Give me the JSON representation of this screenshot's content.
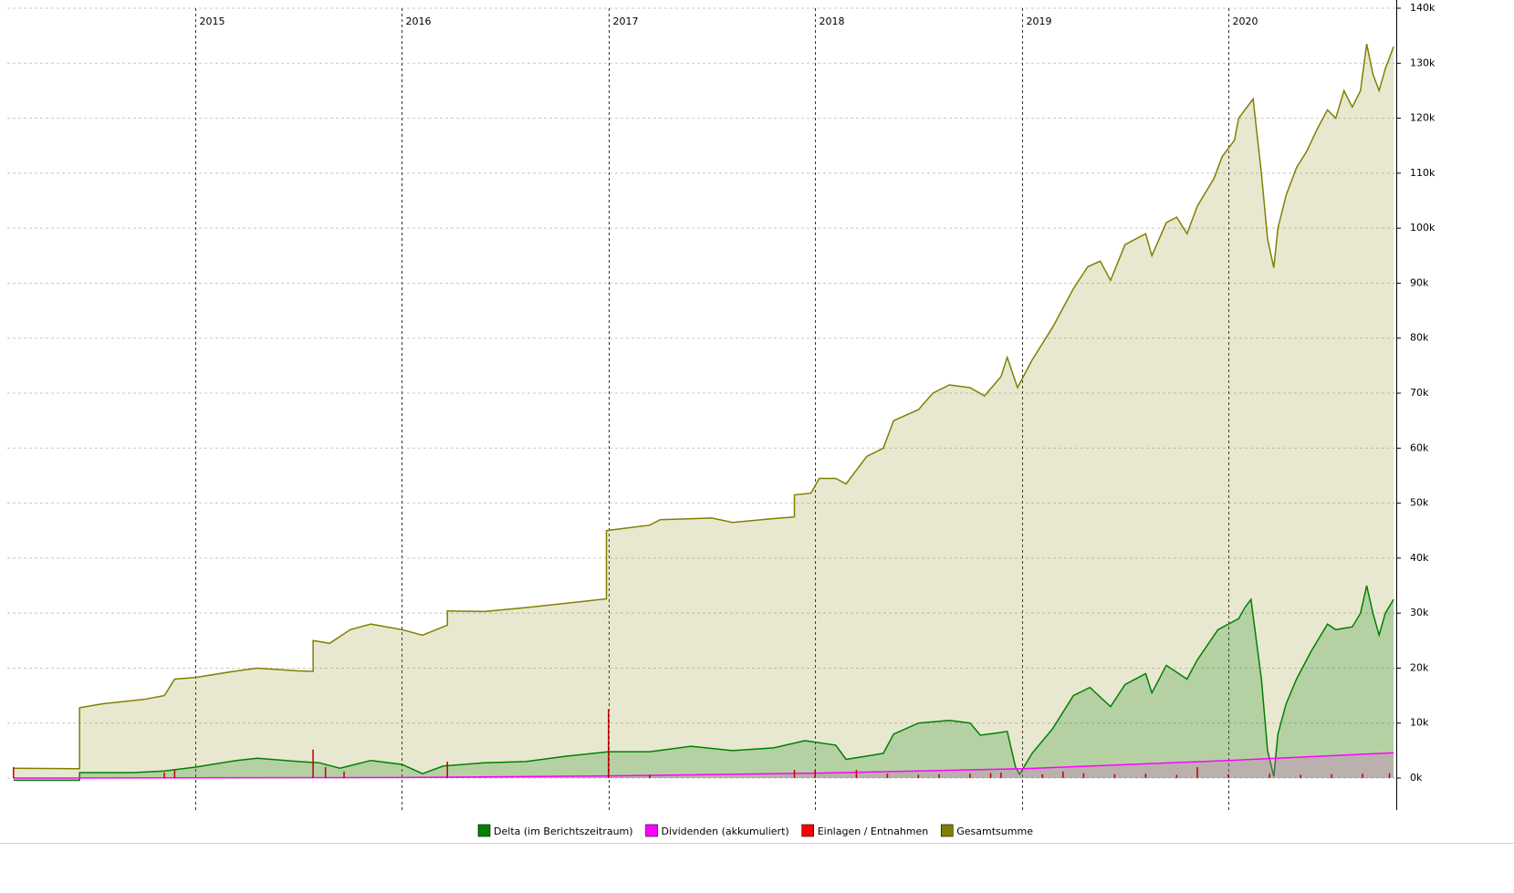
{
  "chart_data": {
    "type": "area",
    "xlim": [
      2014.09,
      2020.813
    ],
    "xticks": [
      2015,
      2016,
      2017,
      2018,
      2019,
      2020
    ],
    "ylim": [
      -5800,
      140000
    ],
    "yticks": [
      {
        "value": 0,
        "label": "0k"
      },
      {
        "value": 10000,
        "label": "10k"
      },
      {
        "value": 20000,
        "label": "20k"
      },
      {
        "value": 30000,
        "label": "30k"
      },
      {
        "value": 40000,
        "label": "40k"
      },
      {
        "value": 50000,
        "label": "50k"
      },
      {
        "value": 60000,
        "label": "60k"
      },
      {
        "value": 70000,
        "label": "70k"
      },
      {
        "value": 80000,
        "label": "80k"
      },
      {
        "value": 90000,
        "label": "90k"
      },
      {
        "value": 100000,
        "label": "100k"
      },
      {
        "value": 110000,
        "label": "110k"
      },
      {
        "value": 120000,
        "label": "120k"
      },
      {
        "value": 130000,
        "label": "130k"
      },
      {
        "value": 140000,
        "label": "140k"
      }
    ],
    "grid": true,
    "legend": "bottom",
    "series": [
      {
        "name": "Delta (im Berichtszeitraum)",
        "color": "#008000",
        "type": "area",
        "x": [
          2014.12,
          2014.44,
          2014.44,
          2014.7,
          2014.85,
          2015.0,
          2015.2,
          2015.3,
          2015.5,
          2015.6,
          2015.7,
          2015.85,
          2016.0,
          2016.1,
          2016.2,
          2016.4,
          2016.6,
          2016.8,
          2017.0,
          2017.2,
          2017.4,
          2017.6,
          2017.8,
          2017.95,
          2018.1,
          2018.15,
          2018.25,
          2018.33,
          2018.38,
          2018.5,
          2018.65,
          2018.75,
          2018.8,
          2018.88,
          2018.93,
          2018.97,
          2018.99,
          2019.05,
          2019.15,
          2019.25,
          2019.33,
          2019.43,
          2019.5,
          2019.6,
          2019.63,
          2019.7,
          2019.8,
          2019.85,
          2019.95,
          2020.05,
          2020.08,
          2020.11,
          2020.16,
          2020.19,
          2020.22,
          2020.24,
          2020.28,
          2020.33,
          2020.4,
          2020.48,
          2020.52,
          2020.6,
          2020.64,
          2020.67,
          2020.7,
          2020.73,
          2020.76,
          2020.8
        ],
        "values": [
          -400,
          -400,
          1000,
          1000,
          1300,
          2000,
          3200,
          3600,
          3000,
          2800,
          1800,
          3200,
          2500,
          800,
          2200,
          2800,
          3000,
          4000,
          4800,
          4800,
          5800,
          5000,
          5500,
          6800,
          6000,
          3400,
          4000,
          4500,
          8000,
          10000,
          10500,
          10000,
          7800,
          8200,
          8500,
          2000,
          700,
          4500,
          9000,
          15000,
          16500,
          13000,
          17000,
          19000,
          15500,
          20500,
          18000,
          21500,
          27000,
          29000,
          31000,
          32500,
          18000,
          5000,
          300,
          8000,
          13500,
          18000,
          23000,
          28000,
          27000,
          27500,
          30000,
          35000,
          30000,
          26000,
          30000,
          32500
        ]
      },
      {
        "name": "Dividenden (akkumuliert)",
        "color": "#ff00ff",
        "type": "area",
        "x": [
          2014.12,
          2016.0,
          2017.0,
          2018.0,
          2019.0,
          2020.0,
          2020.8
        ],
        "values": [
          0,
          100,
          400,
          900,
          1700,
          3200,
          4600
        ]
      },
      {
        "name": "Einlagen / Entnahmen",
        "color": "#ff0000",
        "type": "bar",
        "x": [
          2014.12,
          2014.85,
          2014.9,
          2015.57,
          2015.63,
          2015.72,
          2016.22,
          2017.0,
          2017.2,
          2017.9,
          2018.0,
          2018.2,
          2018.35,
          2018.5,
          2018.6,
          2018.75,
          2018.85,
          2018.9,
          2019.1,
          2019.2,
          2019.3,
          2019.45,
          2019.6,
          2019.75,
          2019.85,
          2020.0,
          2020.2,
          2020.35,
          2020.5,
          2020.65,
          2020.78
        ],
        "values": [
          2000,
          1000,
          1500,
          5200,
          2000,
          1200,
          3000,
          12500,
          600,
          1500,
          1500,
          1500,
          800,
          600,
          700,
          800,
          900,
          1000,
          700,
          1200,
          900,
          700,
          800,
          600,
          2000,
          700,
          800,
          600,
          700,
          800,
          900
        ]
      },
      {
        "name": "Gesamtsumme",
        "color": "#808000",
        "type": "area",
        "x": [
          2014.12,
          2014.44,
          2014.44,
          2014.55,
          2014.75,
          2014.85,
          2014.9,
          2015.0,
          2015.2,
          2015.3,
          2015.5,
          2015.57,
          2015.57,
          2015.65,
          2015.75,
          2015.85,
          2016.0,
          2016.1,
          2016.2,
          2016.22,
          2016.22,
          2016.4,
          2016.6,
          2016.8,
          2016.99,
          2016.99,
          2017.2,
          2017.25,
          2017.5,
          2017.6,
          2017.8,
          2017.9,
          2017.9,
          2017.98,
          2018.02,
          2018.1,
          2018.15,
          2018.25,
          2018.33,
          2018.38,
          2018.5,
          2018.57,
          2018.65,
          2018.75,
          2018.82,
          2018.9,
          2018.93,
          2018.98,
          2019.05,
          2019.15,
          2019.25,
          2019.32,
          2019.38,
          2019.43,
          2019.5,
          2019.6,
          2019.63,
          2019.7,
          2019.75,
          2019.8,
          2019.85,
          2019.93,
          2019.97,
          2020.03,
          2020.05,
          2020.12,
          2020.16,
          2020.19,
          2020.22,
          2020.24,
          2020.28,
          2020.33,
          2020.38,
          2020.43,
          2020.48,
          2020.52,
          2020.56,
          2020.6,
          2020.64,
          2020.67,
          2020.7,
          2020.73,
          2020.76,
          2020.8
        ],
        "values": [
          1800,
          1700,
          12800,
          13500,
          14300,
          15000,
          18000,
          18300,
          19500,
          20000,
          19500,
          19400,
          25000,
          24500,
          27000,
          28000,
          27000,
          26000,
          27500,
          27800,
          30400,
          30300,
          31000,
          31800,
          32600,
          45000,
          46000,
          47000,
          47300,
          46500,
          47200,
          47500,
          51500,
          51800,
          54500,
          54500,
          53500,
          58500,
          60000,
          65000,
          67000,
          70000,
          71500,
          71000,
          69500,
          73000,
          76500,
          71000,
          76000,
          82000,
          89000,
          93000,
          94000,
          90500,
          97000,
          99000,
          95000,
          101000,
          102000,
          99000,
          104000,
          109000,
          113000,
          116000,
          120000,
          123500,
          110000,
          98000,
          92800,
          100000,
          106000,
          111000,
          114000,
          118000,
          121500,
          120000,
          125000,
          122000,
          125000,
          133500,
          128000,
          125000,
          129000,
          133000
        ]
      }
    ]
  }
}
